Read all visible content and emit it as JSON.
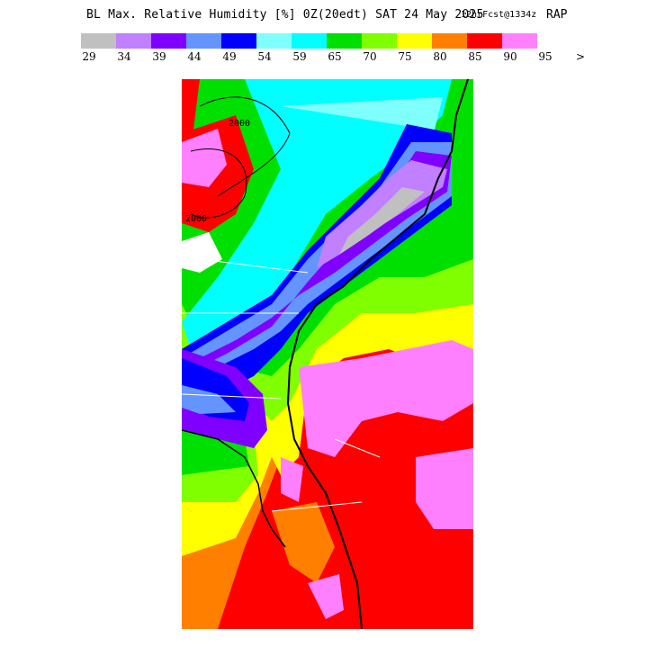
{
  "title": {
    "main": "BL Max. Relative Humidity [%] 0Z(20edt) SAT 24 May 2025",
    "forecast": "12hrFcst@1334z",
    "model": "RAP"
  },
  "legend": {
    "bins": [
      {
        "color": "#c0c0c0"
      },
      {
        "color": "#c080ff"
      },
      {
        "color": "#8000ff"
      },
      {
        "color": "#6495ff"
      },
      {
        "color": "#0000ff"
      },
      {
        "color": "#80ffff"
      },
      {
        "color": "#00ffff"
      },
      {
        "color": "#00e000"
      },
      {
        "color": "#80ff00"
      },
      {
        "color": "#ffff00"
      },
      {
        "color": "#ff8000"
      },
      {
        "color": "#ff0000"
      },
      {
        "color": "#ff80ff"
      }
    ],
    "labels": [
      "29",
      "34",
      "39",
      "44",
      "49",
      "54",
      "59",
      "65",
      "70",
      "75",
      "80",
      "85",
      "90",
      "95",
      ">"
    ]
  },
  "map": {
    "contour_labels": [
      "2000",
      "2000"
    ]
  }
}
